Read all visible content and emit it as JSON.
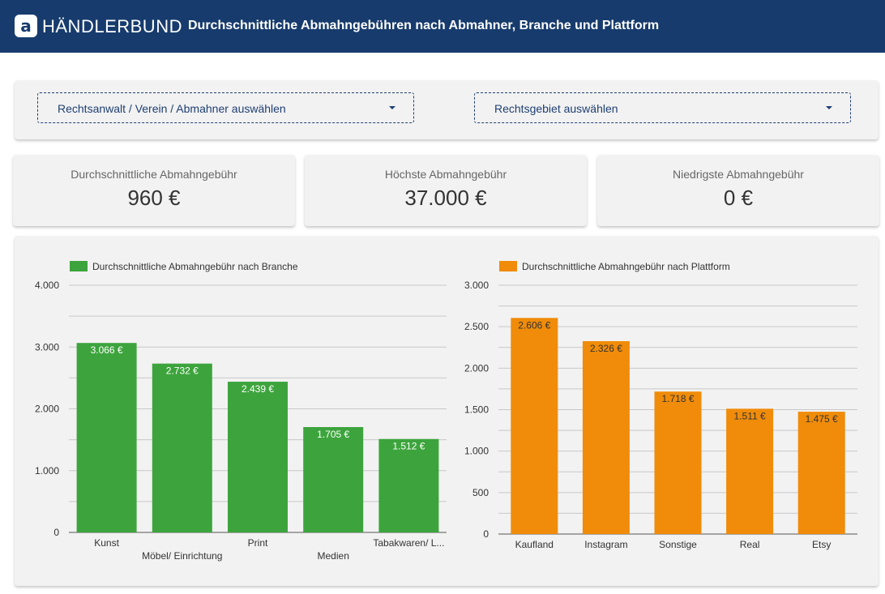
{
  "header": {
    "logo_glyph": "a",
    "brand": "HÄNDLERBUND",
    "title": "Durchschnittliche Abmahngebühren nach Abmahner, Branche und Plattform"
  },
  "filters": {
    "abmahner_label": "Rechtsanwalt / Verein / Abmahner auswählen",
    "rechtsgebiet_label": "Rechtsgebiet auswählen"
  },
  "kpis": [
    {
      "label": "Durchschnittliche Abmahngebühr",
      "value": "960 €"
    },
    {
      "label": "Höchste Abmahngebühr",
      "value": "37.000 €"
    },
    {
      "label": "Niedrigste Abmahngebühr",
      "value": "0 €"
    }
  ],
  "colors": {
    "header": "#173b6d",
    "branche": "#3da43d",
    "plattform": "#f08c0a"
  },
  "chart_data": [
    {
      "type": "bar",
      "legend": "Durchschnittliche Abmahngebühr nach Branche",
      "color": "#3da43d",
      "categories": [
        "Kunst",
        "Möbel/ Einrichtung",
        "Print",
        "Medien",
        "Tabakwaren/ L..."
      ],
      "values": [
        3066,
        2732,
        2439,
        1705,
        1512
      ],
      "value_labels": [
        "3.066 €",
        "2.732 €",
        "2.439 €",
        "1.705 €",
        "1.512 €"
      ],
      "ylim": [
        0,
        4000
      ],
      "yticks": [
        0,
        1000,
        2000,
        3000,
        4000
      ],
      "ytick_labels": [
        "0",
        "1.000",
        "2.000",
        "3.000",
        "4.000"
      ],
      "grid": true,
      "legend_position": "top-left"
    },
    {
      "type": "bar",
      "legend": "Durchschnittliche Abmahngebühr nach Plattform",
      "color": "#f08c0a",
      "categories": [
        "Kaufland",
        "Instagram",
        "Sonstige",
        "Real",
        "Etsy"
      ],
      "values": [
        2606,
        2326,
        1718,
        1511,
        1475
      ],
      "value_labels": [
        "2.606 €",
        "2.326 €",
        "1.718 €",
        "1.511 €",
        "1.475 €"
      ],
      "ylim": [
        0,
        3000
      ],
      "yticks": [
        0,
        500,
        1000,
        1500,
        2000,
        2500,
        3000
      ],
      "ytick_labels": [
        "0",
        "500",
        "1.000",
        "1.500",
        "2.000",
        "2.500",
        "3.000"
      ],
      "grid": true,
      "legend_position": "top-left"
    }
  ]
}
